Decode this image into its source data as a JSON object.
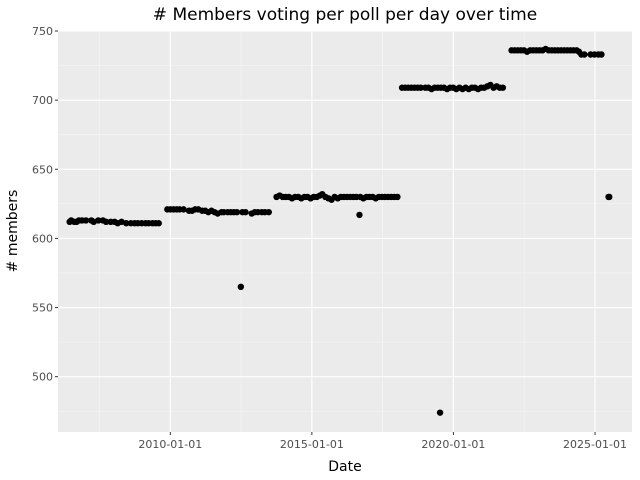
{
  "chart_data": {
    "type": "scatter",
    "title": "# Members voting per poll per day over time",
    "xlabel": "Date",
    "ylabel": "# members",
    "xlim": [
      "2006-01-13",
      "2026-04-23"
    ],
    "ylim": [
      460,
      750
    ],
    "x_ticks": [
      "2010-01-01",
      "2015-01-01",
      "2020-01-01",
      "2025-01-01"
    ],
    "x_tick_labels": [
      "2010-01-01",
      "2015-01-01",
      "2020-01-01",
      "2025-01-01"
    ],
    "y_ticks": [
      500,
      550,
      600,
      650,
      700,
      750
    ],
    "y_tick_labels": [
      "500",
      "550",
      "600",
      "650",
      "700",
      "750"
    ],
    "grid": true,
    "legend": "none",
    "series": [
      {
        "points": [
          [
            "2006-06-12",
            612
          ],
          [
            "2006-07-02",
            613
          ],
          [
            "2006-08-11",
            612
          ],
          [
            "2006-09-10",
            612
          ],
          [
            "2006-10-10",
            613
          ],
          [
            "2006-11-19",
            613
          ],
          [
            "2007-01-08",
            613
          ],
          [
            "2007-03-19",
            613
          ],
          [
            "2007-04-18",
            612
          ],
          [
            "2007-06-17",
            613
          ],
          [
            "2007-08-16",
            613
          ],
          [
            "2007-09-25",
            612
          ],
          [
            "2007-11-24",
            612
          ],
          [
            "2008-01-13",
            612
          ],
          [
            "2008-02-22",
            611
          ],
          [
            "2008-04-12",
            612
          ],
          [
            "2008-06-11",
            611
          ],
          [
            "2008-08-10",
            611
          ],
          [
            "2008-09-29",
            611
          ],
          [
            "2008-11-08",
            611
          ],
          [
            "2008-12-28",
            611
          ],
          [
            "2009-02-16",
            611
          ],
          [
            "2009-03-28",
            611
          ],
          [
            "2009-05-17",
            611
          ],
          [
            "2009-06-26",
            611
          ],
          [
            "2009-08-05",
            611
          ],
          [
            "2009-11-23",
            621
          ],
          [
            "2010-01-02",
            621
          ],
          [
            "2010-02-11",
            621
          ],
          [
            "2010-03-23",
            621
          ],
          [
            "2010-05-02",
            621
          ],
          [
            "2010-06-21",
            621
          ],
          [
            "2010-08-30",
            620
          ],
          [
            "2010-10-09",
            620
          ],
          [
            "2010-11-18",
            621
          ],
          [
            "2010-12-28",
            621
          ],
          [
            "2011-02-16",
            620
          ],
          [
            "2011-03-28",
            620
          ],
          [
            "2011-05-07",
            619
          ],
          [
            "2011-06-16",
            620
          ],
          [
            "2011-07-26",
            619
          ],
          [
            "2011-09-04",
            618
          ],
          [
            "2011-10-24",
            619
          ],
          [
            "2011-11-23",
            619
          ],
          [
            "2012-01-12",
            619
          ],
          [
            "2012-02-21",
            619
          ],
          [
            "2012-03-31",
            619
          ],
          [
            "2012-05-10",
            619
          ],
          [
            "2012-06-29",
            565
          ],
          [
            "2012-07-19",
            619
          ],
          [
            "2012-08-28",
            619
          ],
          [
            "2012-11-16",
            618
          ],
          [
            "2012-12-26",
            619
          ],
          [
            "2013-02-04",
            619
          ],
          [
            "2013-03-26",
            619
          ],
          [
            "2013-05-05",
            619
          ],
          [
            "2013-06-24",
            619
          ],
          [
            "2013-10-02",
            630
          ],
          [
            "2013-11-11",
            631
          ],
          [
            "2013-12-21",
            630
          ],
          [
            "2014-01-30",
            630
          ],
          [
            "2014-03-11",
            630
          ],
          [
            "2014-04-20",
            629
          ],
          [
            "2014-05-30",
            630
          ],
          [
            "2014-07-09",
            630
          ],
          [
            "2014-08-18",
            629
          ],
          [
            "2014-09-27",
            630
          ],
          [
            "2014-11-06",
            630
          ],
          [
            "2014-12-16",
            629
          ],
          [
            "2015-01-25",
            630
          ],
          [
            "2015-03-06",
            630
          ],
          [
            "2015-04-15",
            631
          ],
          [
            "2015-05-15",
            632
          ],
          [
            "2015-06-24",
            630
          ],
          [
            "2015-08-03",
            629
          ],
          [
            "2015-09-12",
            628
          ],
          [
            "2015-10-22",
            630
          ],
          [
            "2015-12-01",
            629
          ],
          [
            "2016-01-10",
            630
          ],
          [
            "2016-02-19",
            630
          ],
          [
            "2016-03-30",
            630
          ],
          [
            "2016-05-09",
            630
          ],
          [
            "2016-06-18",
            630
          ],
          [
            "2016-07-28",
            630
          ],
          [
            "2016-09-06",
            617
          ],
          [
            "2016-09-16",
            630
          ],
          [
            "2016-10-26",
            629
          ],
          [
            "2016-12-05",
            630
          ],
          [
            "2017-01-14",
            630
          ],
          [
            "2017-02-23",
            630
          ],
          [
            "2017-04-04",
            629
          ],
          [
            "2017-05-14",
            630
          ],
          [
            "2017-06-23",
            630
          ],
          [
            "2017-08-02",
            630
          ],
          [
            "2017-09-11",
            630
          ],
          [
            "2017-10-21",
            630
          ],
          [
            "2017-11-30",
            630
          ],
          [
            "2018-01-09",
            630
          ],
          [
            "2018-03-10",
            709
          ],
          [
            "2018-04-19",
            709
          ],
          [
            "2018-05-29",
            709
          ],
          [
            "2018-07-08",
            709
          ],
          [
            "2018-08-17",
            709
          ],
          [
            "2018-09-26",
            709
          ],
          [
            "2018-11-05",
            709
          ],
          [
            "2019-01-04",
            709
          ],
          [
            "2019-02-13",
            709
          ],
          [
            "2019-03-25",
            708
          ],
          [
            "2019-05-04",
            709
          ],
          [
            "2019-06-13",
            709
          ],
          [
            "2019-07-23",
            709
          ],
          [
            "2019-09-01",
            709
          ],
          [
            "2019-10-11",
            708
          ],
          [
            "2019-11-20",
            709
          ],
          [
            "2019-12-30",
            709
          ],
          [
            "2020-02-08",
            708
          ],
          [
            "2020-03-19",
            709
          ],
          [
            "2020-04-28",
            708
          ],
          [
            "2020-06-07",
            709
          ],
          [
            "2020-07-17",
            708
          ],
          [
            "2020-08-26",
            709
          ],
          [
            "2020-10-05",
            709
          ],
          [
            "2020-11-14",
            708
          ],
          [
            "2020-12-24",
            709
          ],
          [
            "2021-02-02",
            709
          ],
          [
            "2021-03-14",
            710
          ],
          [
            "2021-04-23",
            711
          ],
          [
            "2021-06-02",
            709
          ],
          [
            "2021-07-12",
            710
          ],
          [
            "2021-08-21",
            709
          ],
          [
            "2021-09-30",
            709
          ],
          [
            "2019-07-13",
            474
          ],
          [
            "2022-01-20",
            736
          ],
          [
            "2022-02-29",
            736
          ],
          [
            "2022-04-10",
            736
          ],
          [
            "2022-05-20",
            736
          ],
          [
            "2022-06-29",
            736
          ],
          [
            "2022-08-08",
            735
          ],
          [
            "2022-09-17",
            736
          ],
          [
            "2022-10-27",
            736
          ],
          [
            "2022-12-06",
            736
          ],
          [
            "2023-01-15",
            736
          ],
          [
            "2023-02-24",
            736
          ],
          [
            "2023-04-05",
            737
          ],
          [
            "2023-05-15",
            736
          ],
          [
            "2023-06-24",
            736
          ],
          [
            "2023-08-03",
            736
          ],
          [
            "2023-09-12",
            736
          ],
          [
            "2023-10-22",
            736
          ],
          [
            "2023-12-01",
            736
          ],
          [
            "2024-01-10",
            736
          ],
          [
            "2024-02-19",
            736
          ],
          [
            "2024-03-30",
            736
          ],
          [
            "2024-05-09",
            736
          ],
          [
            "2024-06-08",
            735
          ],
          [
            "2024-07-08",
            733
          ],
          [
            "2024-08-17",
            733
          ],
          [
            "2024-11-05",
            733
          ],
          [
            "2024-12-25",
            733
          ],
          [
            "2025-02-13",
            733
          ],
          [
            "2025-03-25",
            733
          ],
          [
            "2025-06-24",
            630
          ],
          [
            "2025-07-04",
            630
          ]
        ]
      }
    ]
  }
}
